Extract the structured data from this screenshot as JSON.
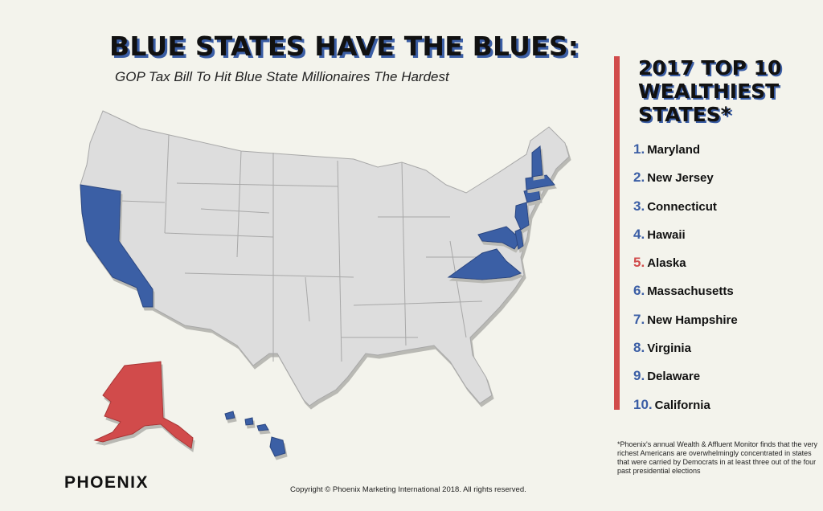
{
  "title": "BLUE STATES HAVE THE BLUES:",
  "subtitle": "GOP Tax Bill To Hit Blue State Millionaires The Hardest",
  "colors": {
    "background": "#f3f3ec",
    "blue": "#3b5ea5",
    "red": "#d14b4b",
    "neutral_state": "#dddddd"
  },
  "ranking": {
    "title": "2017 TOP 10 WEALTHIEST STATES*",
    "items": [
      {
        "rank": "1.",
        "state": "Maryland",
        "party": "blue"
      },
      {
        "rank": "2.",
        "state": "New Jersey",
        "party": "blue"
      },
      {
        "rank": "3.",
        "state": "Connecticut",
        "party": "blue"
      },
      {
        "rank": "4.",
        "state": "Hawaii",
        "party": "blue"
      },
      {
        "rank": "5.",
        "state": "Alaska",
        "party": "red"
      },
      {
        "rank": "6.",
        "state": "Massachusetts",
        "party": "blue"
      },
      {
        "rank": "7.",
        "state": "New Hampshire",
        "party": "blue"
      },
      {
        "rank": "8.",
        "state": "Virginia",
        "party": "blue"
      },
      {
        "rank": "9.",
        "state": "Delaware",
        "party": "blue"
      },
      {
        "rank": "10.",
        "state": "California",
        "party": "blue"
      }
    ]
  },
  "footnote": "*Phoenix's annual Wealth & Affluent Monitor finds that the very richest Americans are overwhelmingly concentrated in states that were carried by Democrats in at least three out of the four past presidential elections",
  "logo": "PHOENIX",
  "copyright": "Copyright © Phoenix Marketing International 2018. All rights reserved."
}
